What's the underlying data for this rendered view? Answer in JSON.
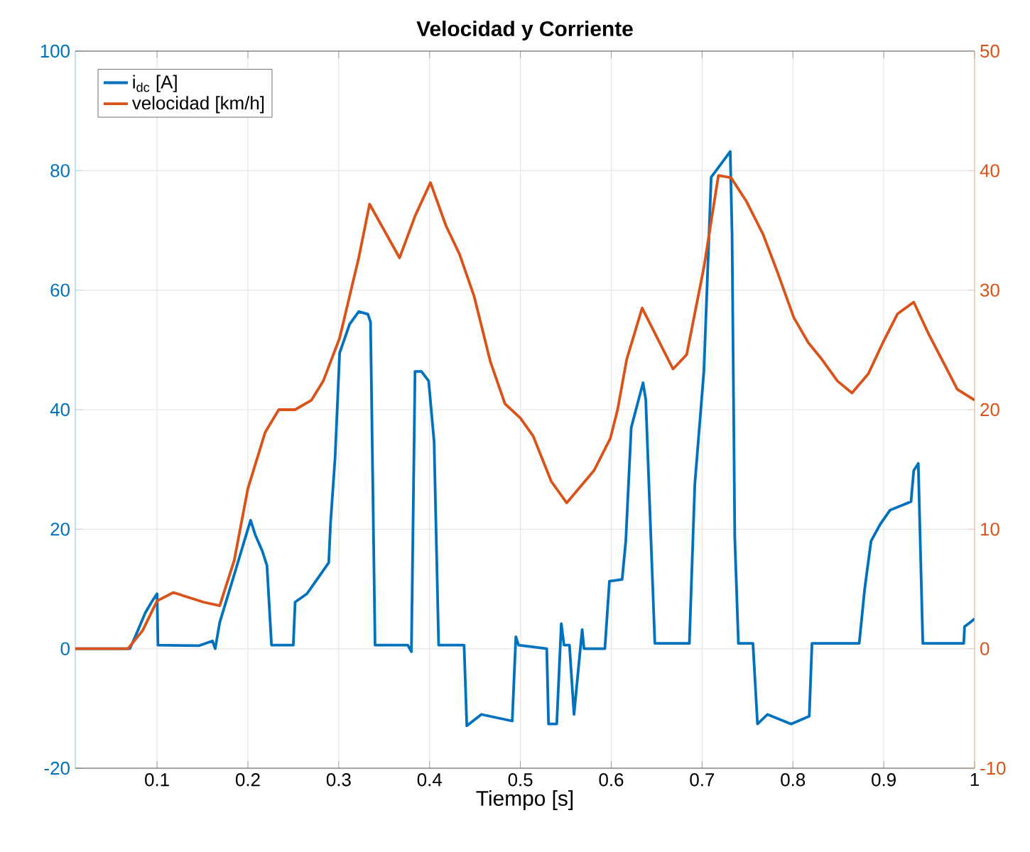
{
  "chart_data": {
    "type": "line",
    "title": "Velocidad y Corriente",
    "xlabel": "Tiempo [s]",
    "xlim": [
      0.01,
      1
    ],
    "xticks": [
      0.1,
      0.2,
      0.3,
      0.4,
      0.5,
      0.6,
      0.7,
      0.8,
      0.9,
      1
    ],
    "ylim": [
      -20,
      100
    ],
    "yticks": [
      -20,
      0,
      20,
      40,
      60,
      80,
      100
    ],
    "y2lim": [
      -10,
      50
    ],
    "y2ticks": [
      -10,
      0,
      10,
      20,
      30,
      40,
      50
    ],
    "grid": true,
    "legend": "top left",
    "marker": "none",
    "line_style": "solid",
    "series": [
      {
        "name": "i$_{dc}$ [A]",
        "color": "#0072bd",
        "axis": "y",
        "x": [
          0.01,
          0.07,
          0.076,
          0.087,
          0.094,
          0.1,
          0.101,
          0.146,
          0.161,
          0.164,
          0.169,
          0.185,
          0.196,
          0.203,
          0.208,
          0.216,
          0.221,
          0.226,
          0.25,
          0.252,
          0.265,
          0.278,
          0.289,
          0.291,
          0.296,
          0.301,
          0.312,
          0.322,
          0.332,
          0.335,
          0.34,
          0.376,
          0.38,
          0.384,
          0.391,
          0.399,
          0.405,
          0.41,
          0.438,
          0.441,
          0.457,
          0.491,
          0.495,
          0.498,
          0.529,
          0.531,
          0.54,
          0.545,
          0.548,
          0.554,
          0.559,
          0.568,
          0.57,
          0.593,
          0.598,
          0.612,
          0.616,
          0.622,
          0.635,
          0.638,
          0.648,
          0.686,
          0.692,
          0.702,
          0.71,
          0.731,
          0.733,
          0.736,
          0.74,
          0.756,
          0.761,
          0.772,
          0.798,
          0.818,
          0.821,
          0.873,
          0.879,
          0.886,
          0.896,
          0.907,
          0.93,
          0.933,
          0.938,
          0.943,
          0.988,
          0.989,
          0.995,
          1.0
        ],
        "values": [
          0,
          0,
          2,
          6,
          7.8,
          9.2,
          0.6,
          0.5,
          1.3,
          0,
          4.4,
          12.4,
          18,
          21.5,
          19.1,
          16.3,
          13.9,
          0.6,
          0.6,
          7.8,
          9.2,
          12,
          14.4,
          21,
          32,
          49.5,
          54.3,
          56.4,
          56,
          54.7,
          0.6,
          0.6,
          -0.5,
          46.4,
          46.4,
          44.8,
          34.6,
          0.6,
          0.6,
          -12.9,
          -11,
          -12.1,
          2,
          0.6,
          0,
          -12.6,
          -12.6,
          4.2,
          0.6,
          0.6,
          -11,
          3.2,
          0,
          0,
          11.3,
          11.6,
          18,
          37,
          44.5,
          41.7,
          0.9,
          0.9,
          27.5,
          46.4,
          78.9,
          83.2,
          69.4,
          18.6,
          0.9,
          0.9,
          -12.6,
          -11,
          -12.6,
          -11.3,
          0.9,
          0.9,
          10,
          18,
          20.8,
          23.2,
          24.6,
          29.8,
          31,
          0.9,
          0.9,
          3.7,
          4.4,
          5
        ]
      },
      {
        "name": "velocidad [km/h]",
        "color": "#d95319",
        "axis": "y2",
        "x": [
          0.01,
          0.068,
          0.084,
          0.1,
          0.118,
          0.151,
          0.169,
          0.185,
          0.2,
          0.219,
          0.234,
          0.252,
          0.27,
          0.283,
          0.301,
          0.322,
          0.334,
          0.367,
          0.384,
          0.401,
          0.418,
          0.433,
          0.449,
          0.467,
          0.483,
          0.5,
          0.514,
          0.534,
          0.551,
          0.581,
          0.599,
          0.607,
          0.617,
          0.634,
          0.668,
          0.683,
          0.702,
          0.718,
          0.732,
          0.749,
          0.767,
          0.783,
          0.801,
          0.817,
          0.832,
          0.849,
          0.865,
          0.883,
          0.899,
          0.915,
          0.933,
          0.949,
          0.964,
          0.981,
          1.0
        ],
        "values": [
          0,
          0,
          1.5,
          4,
          4.7,
          3.9,
          3.6,
          7.4,
          13.4,
          18.1,
          20,
          20,
          20.8,
          22.4,
          26,
          32.7,
          37.2,
          32.7,
          36.2,
          39,
          35.4,
          33,
          29.5,
          24,
          20.5,
          19.3,
          17.8,
          14,
          12.2,
          14.9,
          17.6,
          20,
          24.2,
          28.5,
          23.4,
          24.6,
          31.9,
          39.6,
          39.4,
          37.4,
          34.7,
          31.5,
          27.7,
          25.6,
          24.2,
          22.4,
          21.4,
          23,
          25.6,
          28,
          29,
          26.4,
          24.2,
          21.7,
          20.8
        ]
      }
    ]
  }
}
